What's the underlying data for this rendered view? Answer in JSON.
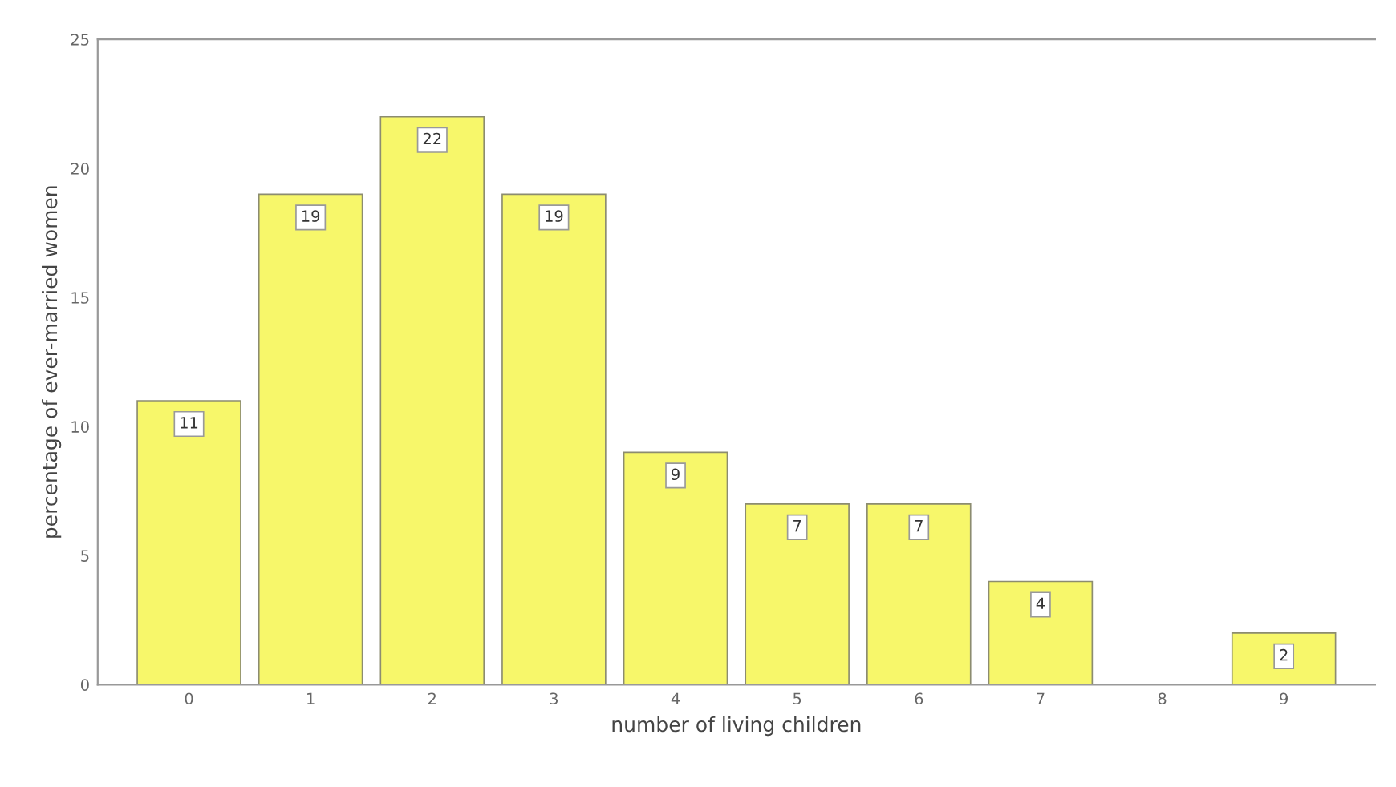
{
  "chart_data": {
    "type": "bar",
    "categories": [
      "0",
      "1",
      "2",
      "3",
      "4",
      "5",
      "6",
      "7",
      "8",
      "9"
    ],
    "values": [
      11,
      19,
      22,
      19,
      9,
      7,
      7,
      4,
      null,
      2
    ],
    "color": "#f7f76a",
    "xlabel": "number of living children",
    "ylabel": "percentage of ever-married women",
    "ylim": [
      0,
      25
    ],
    "yticks": [
      0,
      5,
      10,
      15,
      20,
      25
    ],
    "data_labels": true,
    "grid": false,
    "legend": false
  }
}
